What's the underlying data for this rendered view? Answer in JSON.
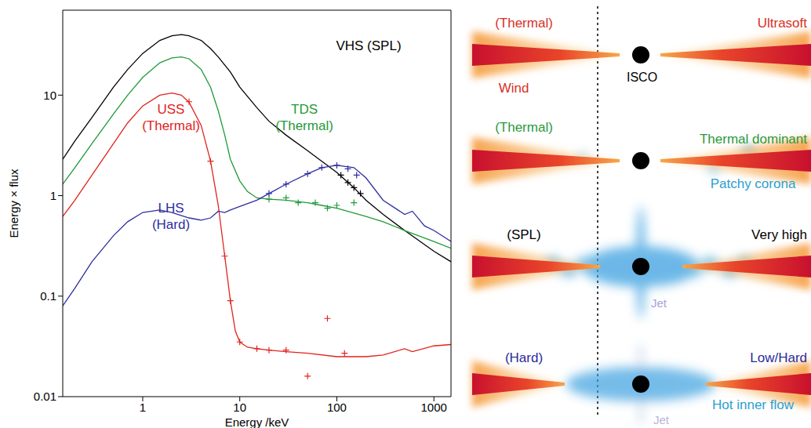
{
  "chart_data": {
    "type": "line",
    "log": true,
    "grid": false,
    "x_label": "Energy /keV",
    "y_label": "Energy × flux",
    "xlim": [
      0.15,
      1500
    ],
    "xticks": [
      1,
      10,
      100,
      1000
    ],
    "ylim": [
      0.01,
      70
    ],
    "yticks": [
      0.01,
      0.1,
      1,
      10
    ],
    "series": [
      {
        "name": "VHS (SPL)",
        "color": "#000000",
        "x": [
          0.15,
          0.2,
          0.3,
          0.5,
          0.7,
          1,
          1.5,
          2,
          2.5,
          3,
          4,
          5,
          6,
          8,
          10,
          15,
          20,
          30,
          50,
          70,
          100,
          150,
          200,
          300,
          500,
          1000,
          1500
        ],
        "values": [
          2.3,
          3.5,
          6,
          12,
          18,
          26,
          35,
          39,
          40,
          39,
          35,
          29,
          24,
          17,
          12,
          7.5,
          5.5,
          4,
          2.8,
          2.2,
          1.7,
          1.2,
          0.9,
          0.65,
          0.45,
          0.28,
          0.22
        ],
        "points": {
          "x": [
            110,
            130,
            150,
            175
          ],
          "y": [
            1.6,
            1.35,
            1.2,
            1.05
          ]
        }
      },
      {
        "name": "TDS (Thermal)",
        "color": "#1f9a3a",
        "x": [
          0.15,
          0.2,
          0.3,
          0.5,
          0.7,
          1,
          1.5,
          2,
          2.5,
          3,
          4,
          5,
          6,
          7,
          8,
          10,
          12,
          15,
          20,
          30,
          50,
          70,
          100,
          200,
          300,
          500,
          1000,
          1500
        ],
        "values": [
          1.3,
          1.9,
          3.3,
          6.5,
          10,
          15,
          21,
          23.5,
          24,
          23,
          18,
          12,
          7,
          4,
          2.3,
          1.4,
          1.1,
          0.95,
          0.92,
          0.9,
          0.85,
          0.8,
          0.75,
          0.62,
          0.55,
          0.45,
          0.35,
          0.3
        ],
        "points": {
          "x": [
            20,
            30,
            40,
            60,
            80,
            100,
            150
          ],
          "y": [
            0.92,
            0.95,
            0.85,
            0.85,
            0.75,
            0.8,
            0.85
          ]
        }
      },
      {
        "name": "USS (Thermal)",
        "color": "#e0231c",
        "x": [
          0.15,
          0.2,
          0.3,
          0.5,
          0.7,
          1,
          1.5,
          2,
          2.5,
          3,
          4,
          5,
          6,
          7,
          8,
          9,
          10,
          12,
          15,
          20,
          30,
          50,
          100,
          200,
          300,
          500,
          600,
          1000,
          1500
        ],
        "values": [
          0.62,
          0.9,
          1.6,
          3.3,
          5.3,
          7.8,
          10,
          10.5,
          10,
          8.5,
          5,
          2.2,
          0.8,
          0.25,
          0.09,
          0.045,
          0.035,
          0.031,
          0.03,
          0.029,
          0.028,
          0.027,
          0.025,
          0.025,
          0.026,
          0.03,
          0.028,
          0.032,
          0.033
        ],
        "points": {
          "x": [
            3,
            5,
            7,
            8,
            10,
            15,
            20,
            30,
            50,
            80,
            120
          ],
          "y": [
            8.6,
            2.2,
            0.25,
            0.09,
            0.035,
            0.03,
            0.029,
            0.029,
            0.016,
            0.06,
            0.027
          ]
        }
      },
      {
        "name": "LHS (Hard)",
        "color": "#2e2ea0",
        "x": [
          0.15,
          0.2,
          0.3,
          0.5,
          0.7,
          1,
          1.5,
          2,
          3,
          4,
          5,
          6,
          7,
          8,
          10,
          15,
          20,
          30,
          50,
          70,
          100,
          150,
          200,
          300,
          500,
          600,
          800,
          1000,
          1500
        ],
        "values": [
          0.08,
          0.12,
          0.22,
          0.4,
          0.55,
          0.68,
          0.72,
          0.68,
          0.6,
          0.57,
          0.6,
          0.7,
          0.68,
          0.72,
          0.78,
          0.9,
          1.05,
          1.3,
          1.65,
          1.9,
          2,
          1.9,
          1.5,
          0.9,
          0.65,
          0.7,
          0.5,
          0.45,
          0.35
        ],
        "points": {
          "x": [
            20,
            30,
            50,
            70,
            100,
            130,
            160
          ],
          "y": [
            1.05,
            1.3,
            1.65,
            1.9,
            2,
            1.85,
            1.6
          ]
        }
      }
    ],
    "marker": "cross",
    "legend": "none"
  },
  "diagram": {
    "isco": "ISCO",
    "rows": [
      {
        "left": "(Thermal)",
        "right": "Ultrasoft",
        "notes": [
          "Wind"
        ]
      },
      {
        "left": "(Thermal)",
        "right": "Thermal dominant",
        "notes": [
          "Patchy corona"
        ]
      },
      {
        "left": "(SPL)",
        "right": "Very high",
        "notes": [
          "Jet"
        ]
      },
      {
        "left": "(Hard)",
        "right": "Low/Hard",
        "notes": [
          "Hot inner flow",
          "Jet"
        ]
      }
    ]
  }
}
